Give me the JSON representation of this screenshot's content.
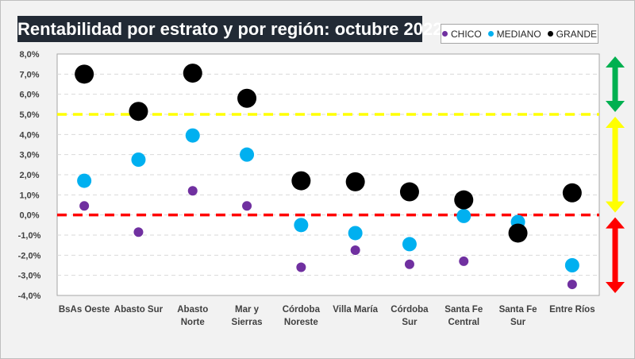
{
  "chart_data": {
    "type": "scatter",
    "title": "Rentabilidad por estrato y por región: octubre 2022",
    "xlabel": "",
    "ylabel": "",
    "ylim": [
      -4.0,
      8.0
    ],
    "yticks": [
      "8,0%",
      "7,0%",
      "6,0%",
      "5,0%",
      "4,0%",
      "3,0%",
      "2,0%",
      "1,0%",
      "0,0%",
      "-1,0%",
      "-2,0%",
      "-3,0%",
      "-4,0%"
    ],
    "ytick_values": [
      8,
      7,
      6,
      5,
      4,
      3,
      2,
      1,
      0,
      -1,
      -2,
      -3,
      -4
    ],
    "grid": true,
    "legend_position": "top-right",
    "categories": [
      [
        "BsAs Oeste"
      ],
      [
        "Abasto Sur"
      ],
      [
        "Abasto",
        "Norte"
      ],
      [
        "Mar y",
        "Sierras"
      ],
      [
        "Córdoba",
        "Noreste"
      ],
      [
        "Villa María"
      ],
      [
        "Córdoba",
        "Sur"
      ],
      [
        "Santa Fe",
        "Central"
      ],
      [
        "Santa Fe",
        "Sur"
      ],
      [
        "Entre Ríos"
      ]
    ],
    "series": [
      {
        "name": "CHICO",
        "color": "#7030a0",
        "size": "small",
        "values": [
          0.45,
          -0.85,
          1.2,
          0.45,
          -2.6,
          -1.75,
          -2.45,
          -2.3,
          -1.1,
          -3.45
        ]
      },
      {
        "name": "MEDIANO",
        "color": "#00b0f0",
        "size": "medium",
        "values": [
          1.7,
          2.75,
          3.95,
          3.0,
          -0.5,
          -0.9,
          -1.45,
          -0.05,
          -0.35,
          -2.5
        ]
      },
      {
        "name": "GRANDE",
        "color": "#000000",
        "size": "large",
        "values": [
          7.0,
          5.15,
          7.05,
          5.8,
          1.7,
          1.65,
          1.15,
          0.75,
          -0.9,
          1.1
        ]
      }
    ],
    "reference_lines": [
      {
        "name": "threshold-high",
        "value": 5.0,
        "color": "#ffff00"
      },
      {
        "name": "threshold-zero",
        "value": 0.0,
        "color": "#ff0000"
      }
    ],
    "range_arrows": [
      {
        "name": "green-range",
        "color": "#00b050",
        "from": 5.0,
        "to": 8.0
      },
      {
        "name": "yellow-range",
        "color": "#ffff00",
        "from": 0.0,
        "to": 5.0
      },
      {
        "name": "red-range",
        "color": "#ff0000",
        "from": -4.0,
        "to": 0.0
      }
    ]
  }
}
